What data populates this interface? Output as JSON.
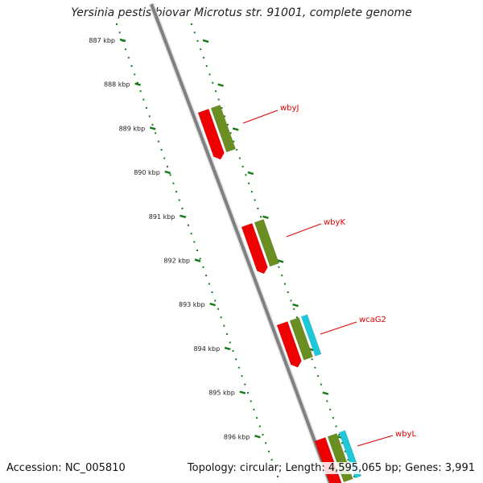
{
  "title": "Yersinia pestis biovar Microtus str. 91001, complete genome",
  "footer": {
    "accession": "Accession: NC_005810",
    "stats": "Topology: circular; Length: 4,595,065 bp; Genes: 3,991"
  },
  "ticks": [
    "887 kbp",
    "888 kbp",
    "889 kbp",
    "890 kbp",
    "891 kbp",
    "892 kbp",
    "893 kbp",
    "894 kbp",
    "895 kbp",
    "896 kbp"
  ],
  "genes": [
    {
      "name": "wbyJ",
      "tracks": [
        "#ee0000",
        "#6b8e23"
      ]
    },
    {
      "name": "wbyK",
      "tracks": [
        "#ee0000",
        "#6b8e23"
      ]
    },
    {
      "name": "wcaG2",
      "tracks": [
        "#ee0000",
        "#6b8e23",
        "#1ec8d8"
      ]
    },
    {
      "name": "wbyL",
      "tracks": [
        "#ee0000",
        "#6b8e23",
        "#1ec8d8"
      ]
    }
  ],
  "colors": {
    "backbone": "#808080",
    "tick": "#1a7a1a",
    "label": "#e00000",
    "forward_track": "#6b8e23",
    "reverse_track": "#ee0000",
    "extra_track": "#1ec8d8"
  }
}
